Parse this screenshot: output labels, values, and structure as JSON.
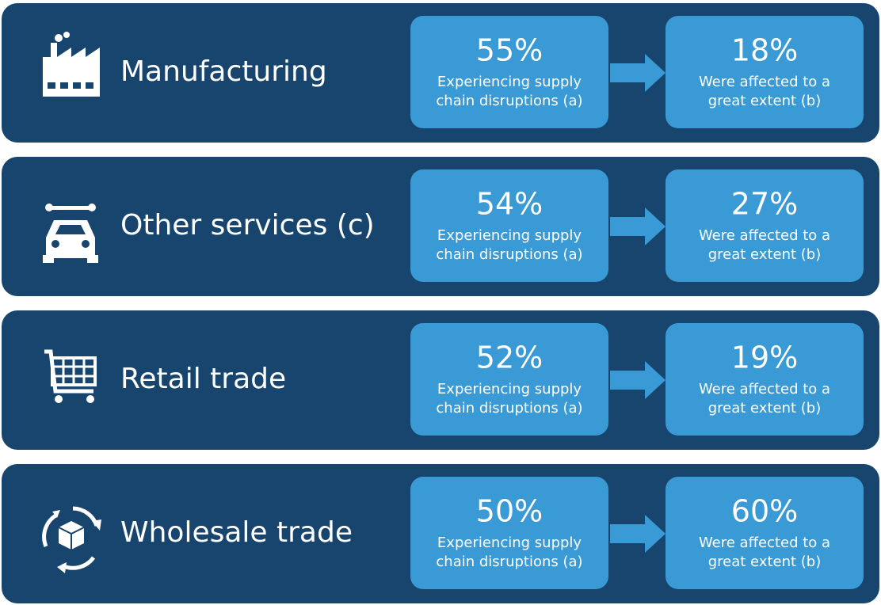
{
  "rows": [
    {
      "label": "Manufacturing",
      "boxes": [
        {
          "value": "55%",
          "lines": [
            "Experiencing supply",
            "chain disruptions (a)"
          ]
        },
        {
          "value": "18%",
          "lines": [
            "Were affected to a",
            "great extent (b)"
          ]
        }
      ]
    },
    {
      "label": "Other services (c)",
      "boxes": [
        {
          "value": "54%",
          "lines": [
            "Experiencing supply",
            "chain disruptions (a)"
          ]
        },
        {
          "value": "27%",
          "lines": [
            "Were affected to a",
            "great extent (b)"
          ]
        }
      ]
    },
    {
      "label": "Retail trade",
      "boxes": [
        {
          "value": "52%",
          "lines": [
            "Experiencing supply",
            "chain disruptions (a)"
          ]
        },
        {
          "value": "19%",
          "lines": [
            "Were affected to a",
            "great extent (b)"
          ]
        }
      ]
    },
    {
      "label": "Wholesale trade",
      "boxes": [
        {
          "value": "50%",
          "lines": [
            "Experiencing supply",
            "chain disruptions (a)"
          ]
        },
        {
          "value": "60%",
          "lines": [
            "Were affected to a",
            "great extent (b)"
          ]
        }
      ]
    }
  ]
}
